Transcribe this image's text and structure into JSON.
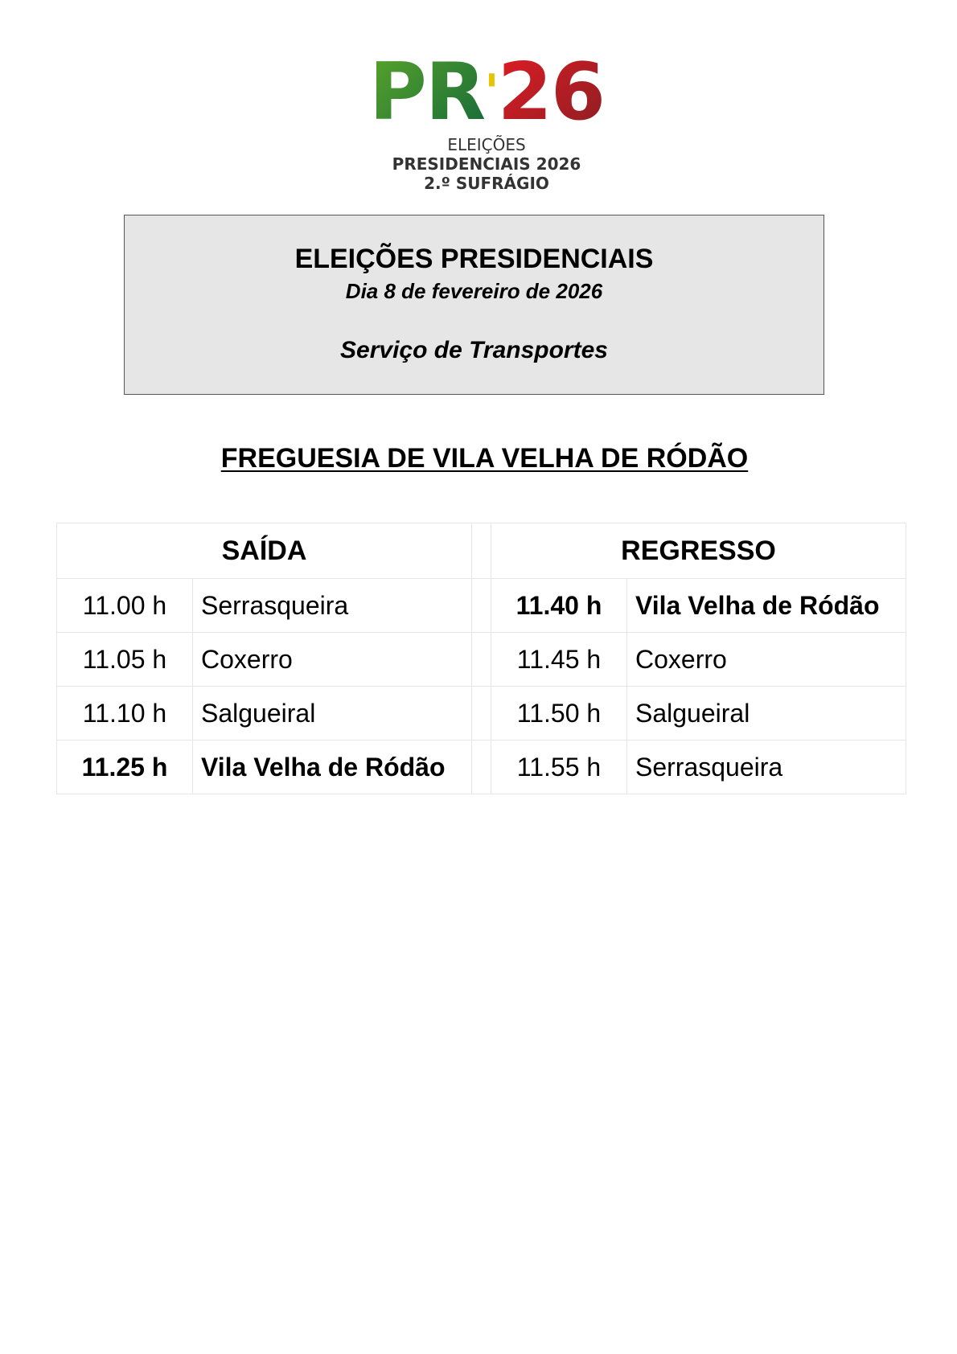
{
  "logo": {
    "mark_left": "PR",
    "mark_apostrophe": "'",
    "mark_right": "26",
    "line1": "ELEIÇÕES",
    "line2": "PRESIDENCIAIS 2026",
    "line3": "2.º SUFRÁGIO",
    "colors": {
      "green": "#1e7a34",
      "red": "#b5202a",
      "yellow": "#e6c400"
    }
  },
  "header": {
    "title": "ELEIÇÕES PRESIDENCIAIS",
    "date": "Dia 8 de fevereiro de 2026",
    "service": "Serviço de Transportes"
  },
  "section_title": "FREGUESIA DE VILA VELHA DE RÓDÃO",
  "schedule": {
    "departure_label": "SAÍDA",
    "return_label": "REGRESSO",
    "departure": [
      {
        "time": "11.00 h",
        "place": "Serrasqueira",
        "bold": false
      },
      {
        "time": "11.05 h",
        "place": "Coxerro",
        "bold": false
      },
      {
        "time": "11.10 h",
        "place": "Salgueiral",
        "bold": false
      },
      {
        "time": "11.25 h",
        "place": "Vila Velha de Ródão",
        "bold": true
      }
    ],
    "return": [
      {
        "time": "11.40 h",
        "place": "Vila Velha de Ródão",
        "bold": true
      },
      {
        "time": "11.45 h",
        "place": "Coxerro",
        "bold": false
      },
      {
        "time": "11.50 h",
        "place": "Salgueiral",
        "bold": false
      },
      {
        "time": "11.55 h",
        "place": "Serrasqueira",
        "bold": false
      }
    ]
  }
}
